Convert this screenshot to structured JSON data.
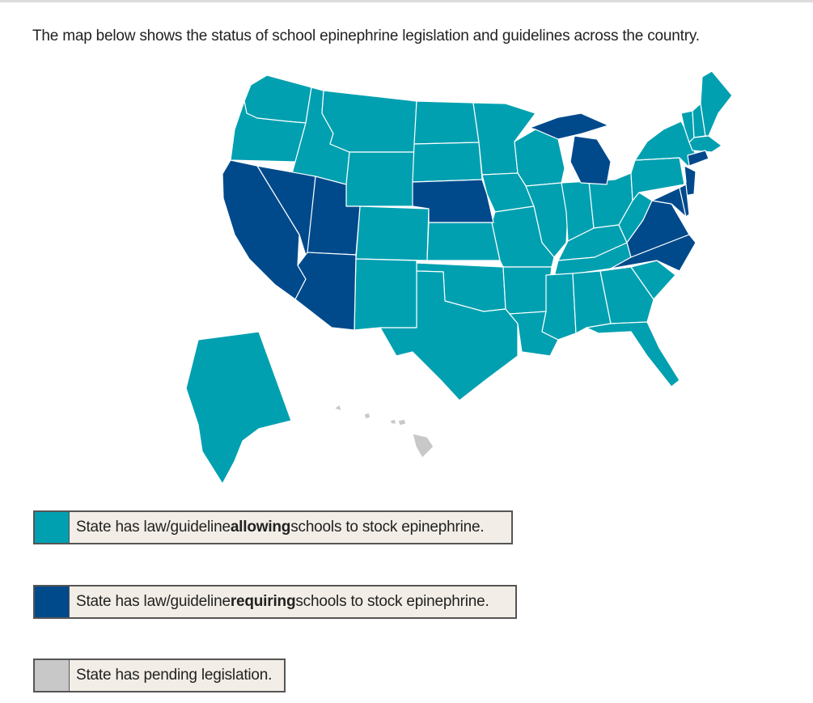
{
  "intro_text": "The map below shows the status of school epinephrine legislation and guidelines across the country.",
  "colors": {
    "allowing": "#00a0b0",
    "requiring": "#004a8c",
    "pending": "#c8c8c8",
    "border": "#ffffff"
  },
  "map": {
    "type": "choropleth",
    "region": "United States",
    "states_allowing": [
      "WA",
      "OR",
      "ID",
      "MT",
      "WY",
      "ND",
      "SD",
      "MN",
      "WI",
      "IA",
      "IL",
      "IN",
      "OH",
      "PA",
      "NY",
      "VT",
      "NH",
      "ME",
      "MA",
      "CO",
      "KS",
      "MO",
      "KY",
      "WV",
      "TN",
      "OK",
      "TX",
      "NM",
      "AR",
      "LA",
      "MS",
      "AL",
      "GA",
      "SC",
      "FL",
      "AK"
    ],
    "states_requiring": [
      "CA",
      "NV",
      "UT",
      "AZ",
      "NE",
      "MI",
      "VA",
      "NC",
      "NJ",
      "MD",
      "DE",
      "CT"
    ],
    "states_pending": [
      "HI"
    ]
  },
  "legend": [
    {
      "key": "allowing",
      "prefix": "State has law/guideline ",
      "bold": "allowing",
      "suffix": " schools to stock epinephrine."
    },
    {
      "key": "requiring",
      "prefix": "State has law/guideline ",
      "bold": "requiring",
      "suffix": " schools to stock epinephrine."
    },
    {
      "key": "pending",
      "prefix": "State has pending legislation.",
      "bold": "",
      "suffix": ""
    }
  ]
}
